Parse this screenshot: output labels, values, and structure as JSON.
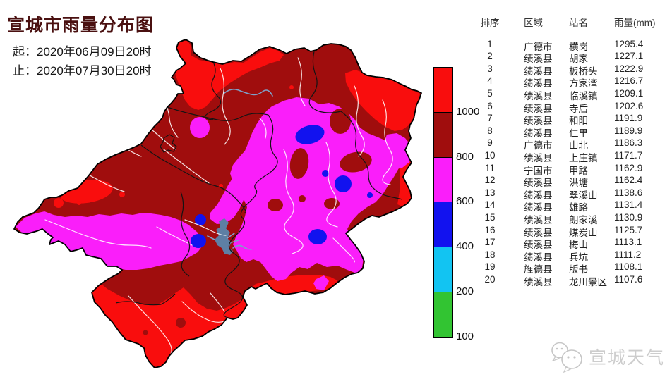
{
  "title": "宣城市雨量分布图",
  "period": {
    "start": "起：2020年06月09日20时",
    "end": "止：2020年07月30日20时"
  },
  "legend": {
    "unit": "mm",
    "segments": [
      {
        "color": "#f90d0d",
        "label": "1000"
      },
      {
        "color": "#a00d0d",
        "label": "800"
      },
      {
        "color": "#fa1efa",
        "label": "600"
      },
      {
        "color": "#1212ef",
        "label": "400"
      },
      {
        "color": "#12c4f2",
        "label": "200"
      },
      {
        "color": "#32c432",
        "label": "100"
      }
    ]
  },
  "map": {
    "water_color": "#5e7fa4",
    "river_color": "#ffffff",
    "boundary_color": "#000000"
  },
  "table": {
    "headers": [
      "排序",
      "区域",
      "站名",
      "雨量(mm)"
    ],
    "rows": [
      [
        "1",
        "广德市",
        "横岗",
        "1295.4"
      ],
      [
        "2",
        "绩溪县",
        "胡家",
        "1227.1"
      ],
      [
        "3",
        "绩溪县",
        "板桥头",
        "1222.9"
      ],
      [
        "4",
        "绩溪县",
        "方家湾",
        "1216.7"
      ],
      [
        "5",
        "绩溪县",
        "临溪镇",
        "1209.1"
      ],
      [
        "6",
        "绩溪县",
        "寺后",
        "1202.6"
      ],
      [
        "7",
        "绩溪县",
        "和阳",
        "1191.9"
      ],
      [
        "8",
        "绩溪县",
        "仁里",
        "1189.9"
      ],
      [
        "9",
        "广德市",
        "山北",
        "1186.3"
      ],
      [
        "10",
        "绩溪县",
        "上庄镇",
        "1171.7"
      ],
      [
        "11",
        "宁国市",
        "甲路",
        "1162.9"
      ],
      [
        "12",
        "绩溪县",
        "洪塘",
        "1162.4"
      ],
      [
        "13",
        "绩溪县",
        "翠溪山",
        "1138.6"
      ],
      [
        "14",
        "绩溪县",
        "雄路",
        "1131.4"
      ],
      [
        "15",
        "绩溪县",
        "朗家溪",
        "1130.9"
      ],
      [
        "16",
        "绩溪县",
        "煤炭山",
        "1125.7"
      ],
      [
        "17",
        "绩溪县",
        "梅山",
        "1113.1"
      ],
      [
        "18",
        "绩溪县",
        "兵坑",
        "1111.2"
      ],
      [
        "19",
        "旌德县",
        "版书",
        "1108.1"
      ],
      [
        "20",
        "绩溪县",
        "龙川景区",
        "1107.6"
      ]
    ]
  },
  "watermark": {
    "text": "宣城天气",
    "icon": "wechat-icon"
  }
}
